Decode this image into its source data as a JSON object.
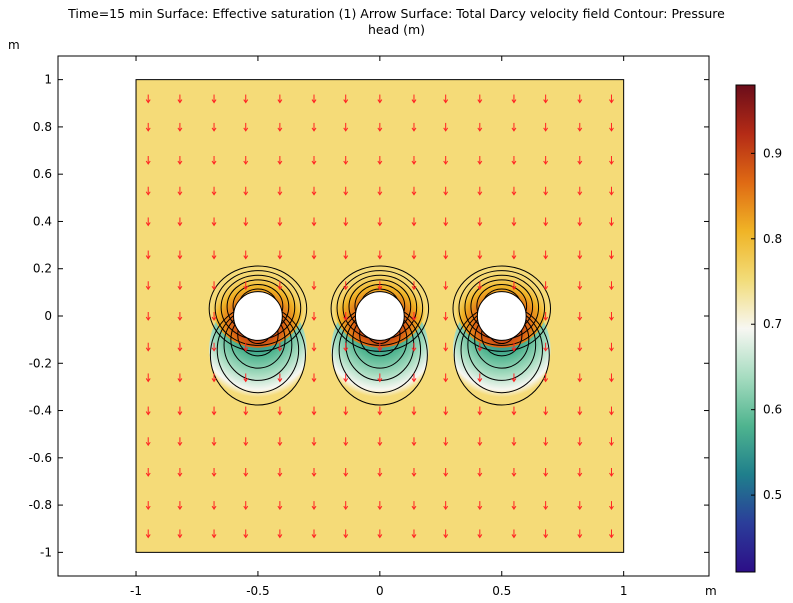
{
  "chart_data": {
    "type": "heatmap",
    "title": "Time=15 min Surface: Effective saturation (1)  Arrow Surface: Total Darcy velocity field  Contour: Pressure\nhead (m)",
    "x_unit": "m",
    "y_unit": "m",
    "xlim": [
      -1.32,
      1.35
    ],
    "ylim": [
      -1.1,
      1.1
    ],
    "x_ticks": [
      -1,
      -0.5,
      0,
      0.5,
      1
    ],
    "y_ticks": [
      1,
      0.8,
      0.6,
      0.4,
      0.2,
      0,
      -0.2,
      -0.4,
      -0.6,
      -0.8,
      -1
    ],
    "domain": {
      "x": [
        -1,
        1
      ],
      "y": [
        -1,
        1
      ]
    },
    "background_value": 0.72,
    "holes": [
      {
        "cx": -0.5,
        "cy": 0,
        "r": 0.1
      },
      {
        "cx": 0,
        "cy": 0,
        "r": 0.1
      },
      {
        "cx": 0.5,
        "cy": 0,
        "r": 0.1
      }
    ],
    "colorbar": {
      "min": 0.41,
      "max": 0.98,
      "ticks": [
        0.9,
        0.8,
        0.7,
        0.6,
        0.5
      ],
      "stops": [
        "#2c0e87",
        "#2b3d9a",
        "#1f7f8c",
        "#4fb48f",
        "#a6dcc0",
        "#f7f7f2",
        "#f2dc79",
        "#f0b426",
        "#df6a14",
        "#b42b16",
        "#6b0d1a"
      ]
    },
    "arrows": {
      "direction": "down",
      "color": "#ff2222",
      "x": [
        -0.95,
        -0.82,
        -0.68,
        -0.55,
        -0.41,
        -0.27,
        -0.14,
        0,
        0.14,
        0.27,
        0.41,
        0.55,
        0.68,
        0.82,
        0.95
      ],
      "y": [
        0.92,
        0.8,
        0.66,
        0.53,
        0.4,
        0.26,
        0.13,
        0,
        -0.13,
        -0.26,
        -0.4,
        -0.53,
        -0.66,
        -0.8,
        -0.92
      ]
    },
    "colors": {
      "domain": "#f5db78",
      "hole": "#ffffff",
      "contour": "#000000"
    }
  }
}
